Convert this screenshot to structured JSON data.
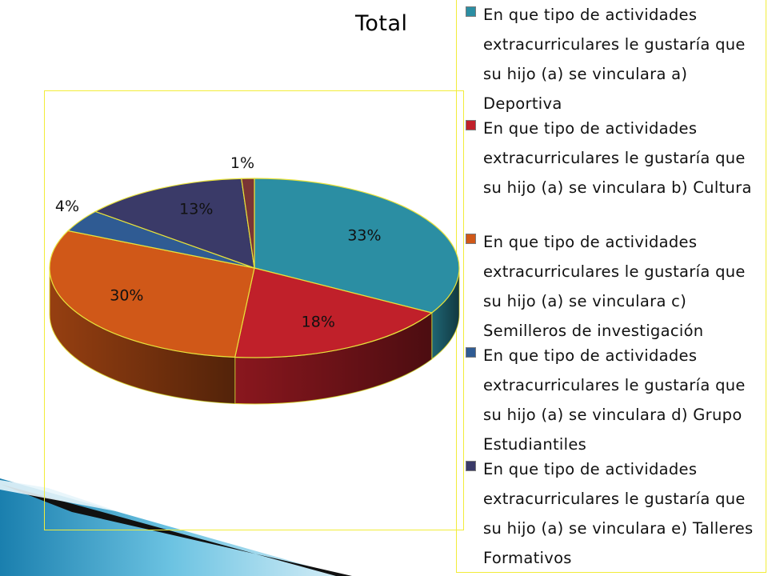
{
  "chart_data": {
    "type": "pie",
    "title": "Total",
    "three_d": true,
    "legend_position": "right",
    "slices": [
      {
        "label": "En que tipo de actividades extracurriculares le gustaría que su hijo (a) se vinculara a) Deportiva",
        "value": 33,
        "display": "33%",
        "color": "#2b8ea3"
      },
      {
        "label": "En que tipo de actividades extracurriculares le gustaría que su hijo (a) se vinculara b) Cultura",
        "value": 18,
        "display": "18%",
        "color": "#c0202a"
      },
      {
        "label": "En que tipo de actividades extracurriculares le gustaría que su hijo (a) se vinculara c) Semilleros de investigación",
        "value": 30,
        "display": "30%",
        "color": "#d05818"
      },
      {
        "label": "En que tipo de actividades extracurriculares le gustaría que su hijo (a) se vinculara d) Grupo Estudiantiles",
        "value": 4,
        "display": "4%",
        "color": "#2f5b93"
      },
      {
        "label": "En que tipo de actividades extracurriculares le gustaría que su hijo (a) se vinculara e) Talleres Formativos",
        "value": 13,
        "display": "13%",
        "color": "#3a3a68"
      },
      {
        "label": "",
        "value": 1,
        "display": "1%",
        "color": "#7a3535"
      }
    ]
  }
}
